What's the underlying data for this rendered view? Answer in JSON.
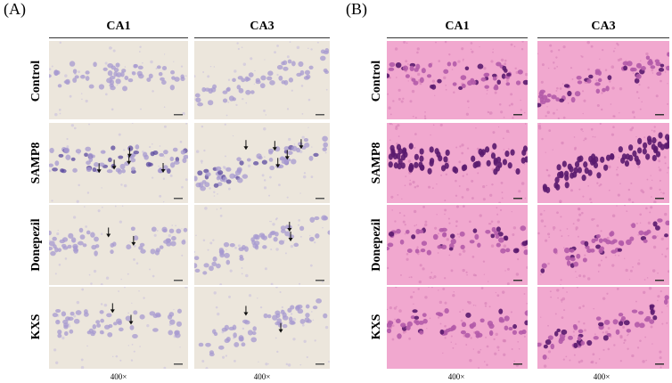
{
  "panels": [
    {
      "label": "(A)",
      "stain": "nissl",
      "columns": [
        "CA1",
        "CA3"
      ],
      "magnification": [
        "400×",
        "400×"
      ]
    },
    {
      "label": "(B)",
      "stain": "he",
      "columns": [
        "CA1",
        "CA3"
      ],
      "magnification": [
        "400×",
        "400×"
      ]
    }
  ],
  "rows": [
    "Control",
    "SAMP8",
    "Donepezil",
    "KXS"
  ],
  "colors": {
    "nissl_background": "#ece6dc",
    "nissl_cell": "#a79ad0",
    "nissl_dark": "#5b4aa0",
    "he_background": "#f1a8cf",
    "he_cell": "#b35aa8",
    "he_dark": "#5a1a6e"
  }
}
